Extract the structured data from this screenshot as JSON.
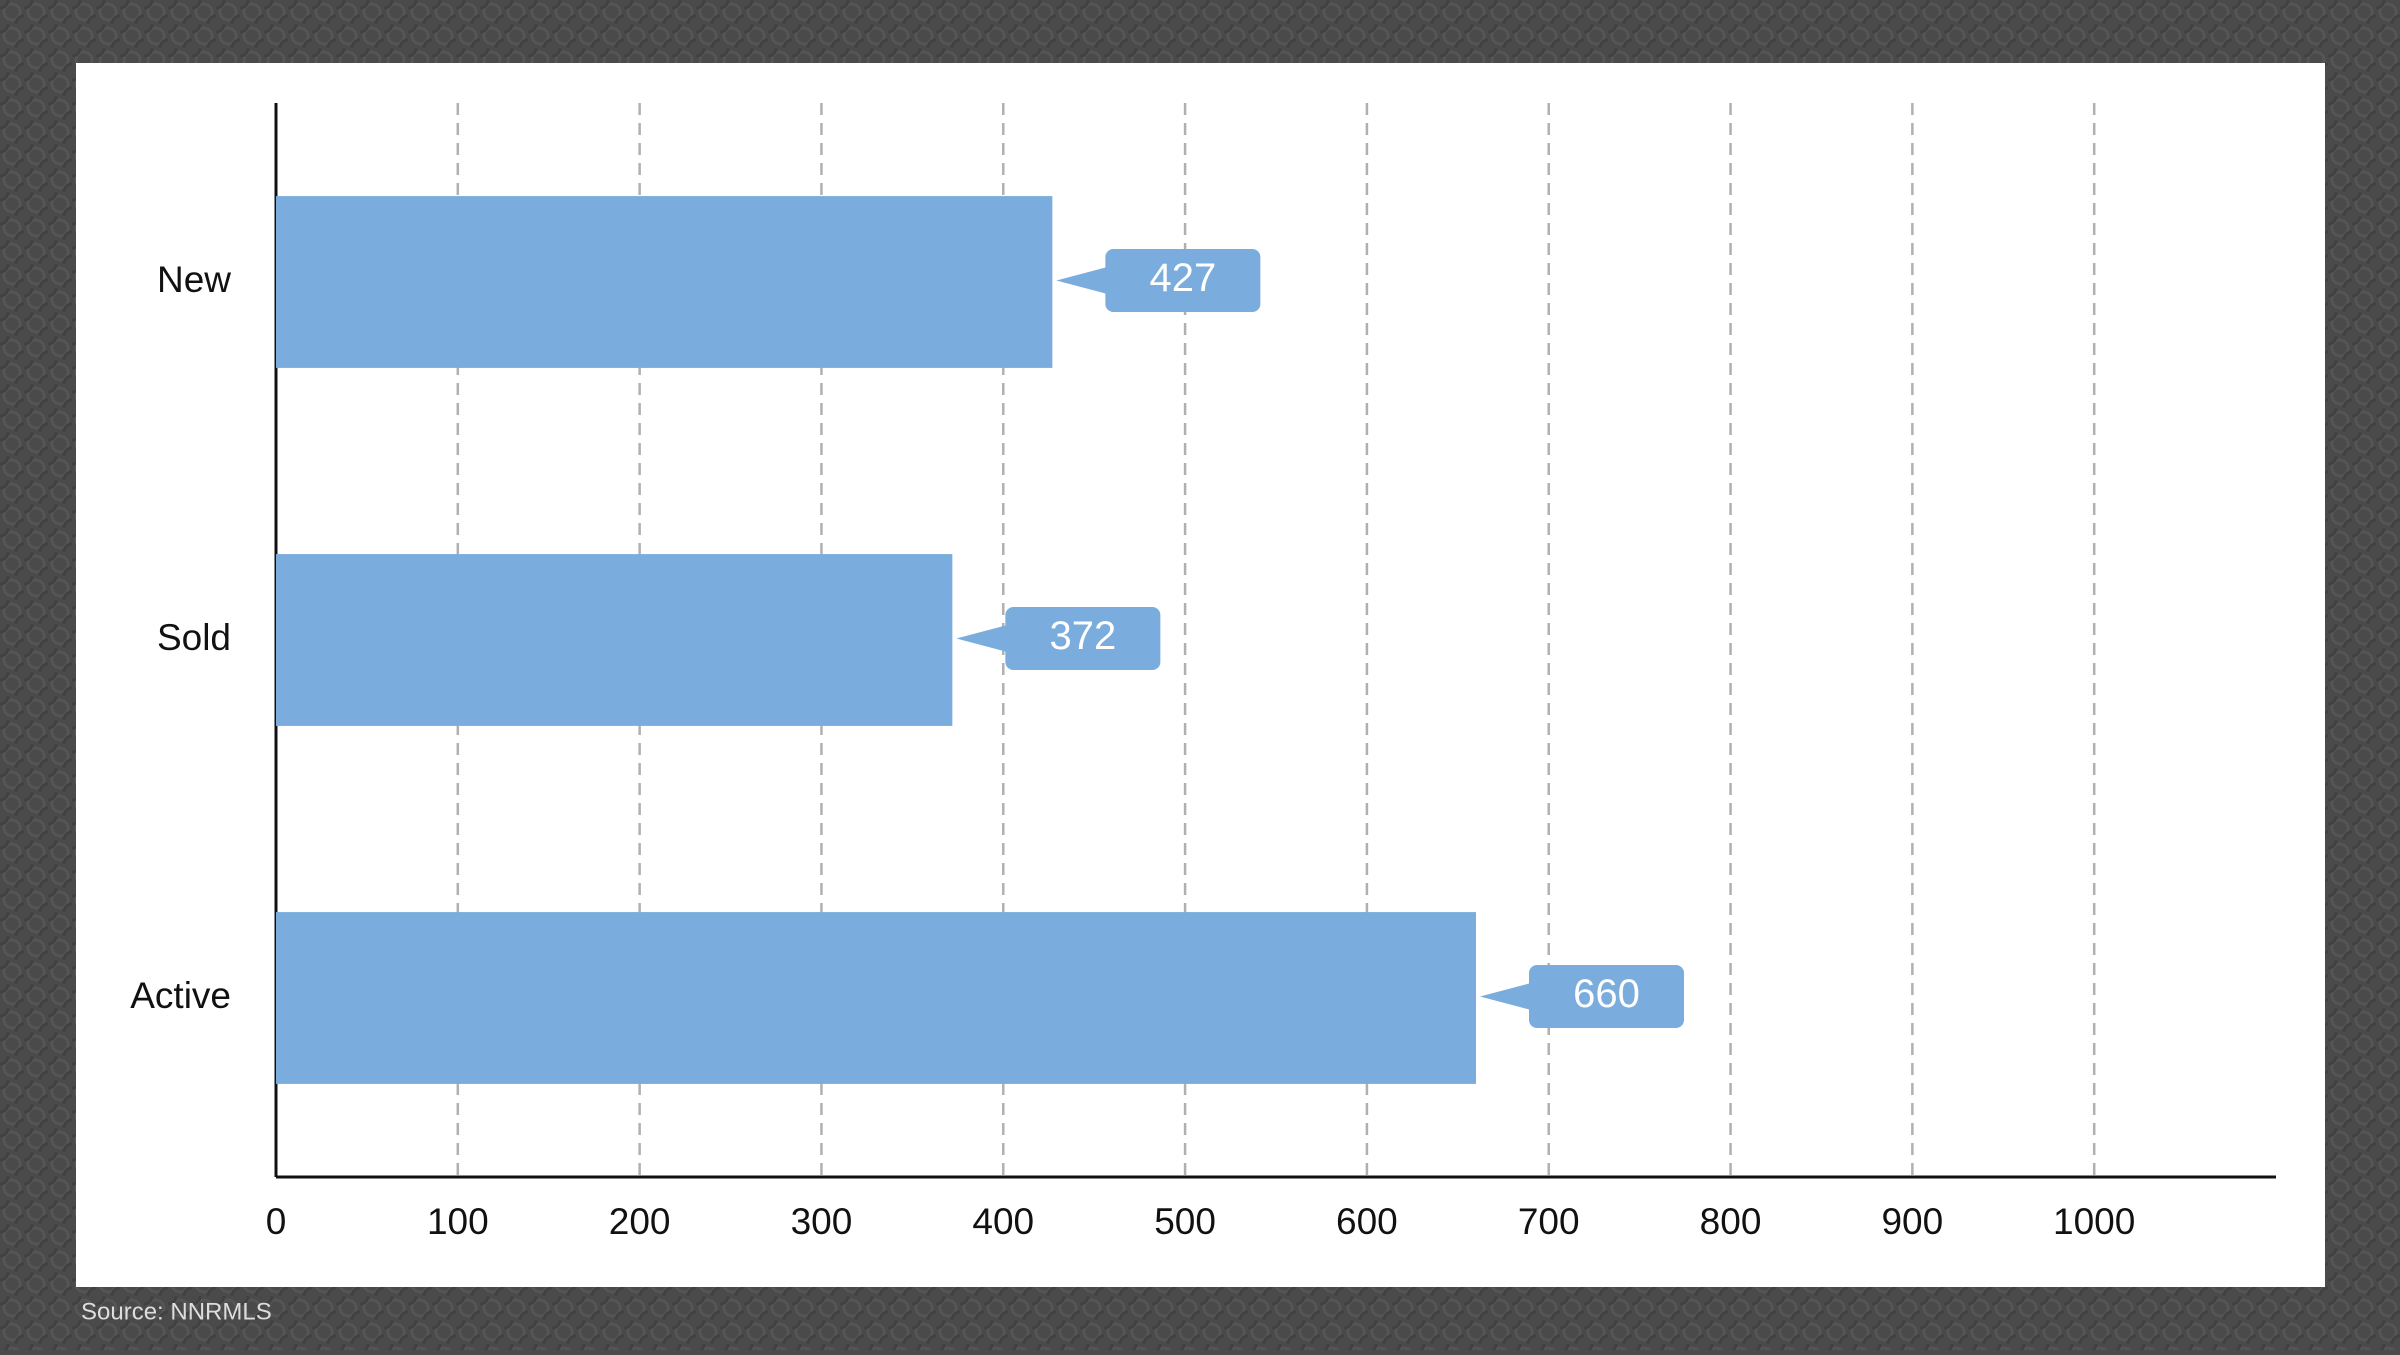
{
  "chart_data": {
    "type": "bar",
    "orientation": "horizontal",
    "categories": [
      "New",
      "Sold",
      "Active"
    ],
    "values": [
      427,
      372,
      660
    ],
    "color": "#7aaddd",
    "xlim": [
      0,
      1100
    ],
    "xticks": [
      0,
      100,
      200,
      300,
      400,
      500,
      600,
      700,
      800,
      900,
      1000
    ],
    "grid": true,
    "source": "Source: NNRMLS"
  }
}
